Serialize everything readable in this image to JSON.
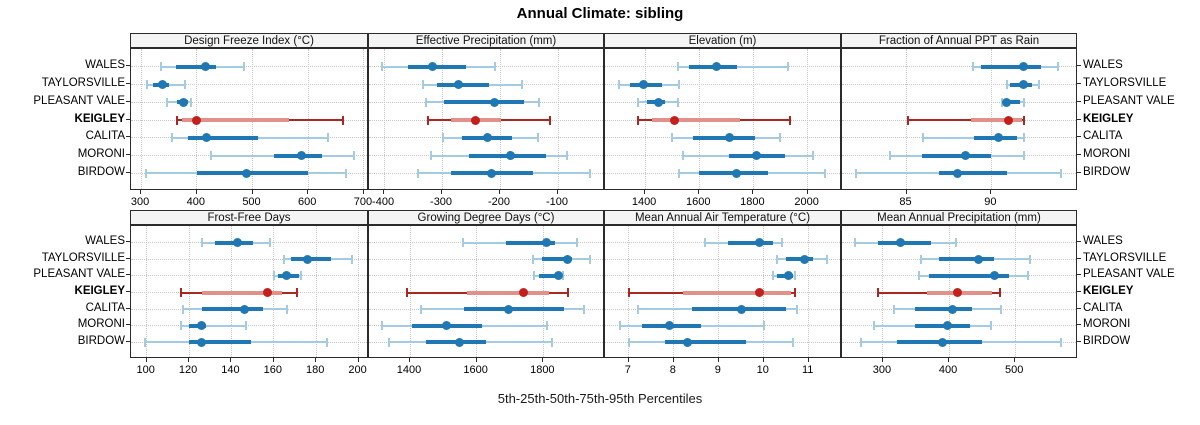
{
  "title": "Annual Climate: sibling",
  "caption": "5th-25th-50th-75th-95th Percentiles",
  "sites": [
    "WALES",
    "TAYLORSVILLE",
    "PLEASANT VALE",
    "KEIGLEY",
    "CALITA",
    "MORONI",
    "BIRDOW"
  ],
  "highlight_site": "KEIGLEY",
  "percentile_labels": [
    "5th",
    "25th",
    "50th",
    "75th",
    "95th"
  ],
  "colors": {
    "normal": {
      "line": "#a5cbe2",
      "iqr": "#1f77b4",
      "dot": "#1f77b4"
    },
    "highlight": {
      "line": "#ad2722",
      "iqr": "#e2908a",
      "dot": "#c3201b"
    },
    "grid": "#c6c6c6",
    "border": "#2b2b2b",
    "strip_bg": "#f4f4f4"
  },
  "chart_data": [
    {
      "type": "dotplot-percentile",
      "title": "Design Freeze Index (°C)",
      "ticks": [
        300,
        400,
        500,
        600,
        700
      ],
      "xlim": [
        282,
        709
      ],
      "values": [
        [
          336,
          362,
          415,
          435,
          484
        ],
        [
          311,
          321,
          338,
          351,
          378
        ],
        [
          346,
          365,
          377,
          385,
          390
        ],
        [
          365,
          374,
          400,
          565,
          663
        ],
        [
          355,
          384,
          418,
          509,
          635
        ],
        [
          426,
          538,
          588,
          624,
          682
        ],
        [
          309,
          400,
          490,
          599,
          668
        ]
      ]
    },
    {
      "type": "dotplot-percentile",
      "title": "Effective Precipitation (mm)",
      "ticks": [
        -400,
        -300,
        -200,
        -100
      ],
      "xlim": [
        -426,
        -19
      ],
      "values": [
        [
          -403,
          -358,
          -317,
          -259,
          -208
        ],
        [
          -333,
          -308,
          -272,
          -219,
          -163
        ],
        [
          -328,
          -297,
          -210,
          -159,
          -132
        ],
        [
          -325,
          -284,
          -242,
          -198,
          -114
        ],
        [
          -298,
          -265,
          -222,
          -179,
          -134
        ],
        [
          -319,
          -253,
          -182,
          -121,
          -85
        ],
        [
          -341,
          -285,
          -214,
          -144,
          -45
        ]
      ]
    },
    {
      "type": "dotplot-percentile",
      "title": "Elevation (m)",
      "ticks": [
        1400,
        1600,
        1800,
        2000
      ],
      "xlim": [
        1252,
        2127
      ],
      "values": [
        [
          1521,
          1563,
          1662,
          1738,
          1927
        ],
        [
          1302,
          1345,
          1394,
          1464,
          1525
        ],
        [
          1373,
          1406,
          1449,
          1474,
          1523
        ],
        [
          1375,
          1425,
          1507,
          1751,
          1935
        ],
        [
          1498,
          1578,
          1711,
          1806,
          1898
        ],
        [
          1541,
          1708,
          1812,
          1917,
          2021
        ],
        [
          1525,
          1599,
          1736,
          1855,
          2064
        ]
      ]
    },
    {
      "type": "dotplot-percentile",
      "title": "Fraction of Annual PPT as Rain",
      "ticks": [
        85,
        90
      ],
      "xlim": [
        81.2,
        95.1
      ],
      "values": [
        [
          88.9,
          89.4,
          91.9,
          92.9,
          93.9
        ],
        [
          90.9,
          91.1,
          91.9,
          92.4,
          92.8
        ],
        [
          90.6,
          90.7,
          90.9,
          91.7,
          91.9
        ],
        [
          85.1,
          88.8,
          91.0,
          91.8,
          91.9
        ],
        [
          86.0,
          89.0,
          90.4,
          91.5,
          91.9
        ],
        [
          84.0,
          85.9,
          88.5,
          90.0,
          91.9
        ],
        [
          82.0,
          86.9,
          88.0,
          90.9,
          94.1
        ]
      ]
    },
    {
      "type": "dotplot-percentile",
      "title": "Frost-Free Days",
      "ticks": [
        100,
        120,
        140,
        160,
        180,
        200
      ],
      "xlim": [
        92.6,
        204.9
      ],
      "values": [
        [
          126,
          132,
          143,
          150,
          158
        ],
        [
          165,
          168,
          176,
          187,
          197
        ],
        [
          160,
          162,
          166,
          172,
          173
        ],
        [
          116,
          126,
          157,
          164,
          171
        ],
        [
          117,
          126,
          146,
          155,
          166
        ],
        [
          116,
          120,
          126,
          128,
          147
        ],
        [
          99,
          120,
          126,
          149,
          185
        ]
      ]
    },
    {
      "type": "dotplot-percentile",
      "title": "Growing Degree Days (°C)",
      "ticks": [
        1400,
        1600,
        1800
      ],
      "xlim": [
        1277,
        1985
      ],
      "values": [
        [
          1560,
          1687,
          1810,
          1835,
          1902
        ],
        [
          1769,
          1797,
          1872,
          1887,
          1940
        ],
        [
          1772,
          1787,
          1845,
          1857,
          1860
        ],
        [
          1390,
          1572,
          1740,
          1817,
          1875
        ],
        [
          1432,
          1562,
          1695,
          1862,
          1922
        ],
        [
          1317,
          1405,
          1510,
          1617,
          1812
        ],
        [
          1337,
          1449,
          1547,
          1627,
          1825
        ]
      ]
    },
    {
      "type": "dotplot-percentile",
      "title": "Mean Annual Air Temperature (°C)",
      "ticks": [
        7,
        8,
        9,
        10,
        11
      ],
      "xlim": [
        6.47,
        11.74
      ],
      "values": [
        [
          8.7,
          9.2,
          9.9,
          10.2,
          10.4
        ],
        [
          10.3,
          10.5,
          10.9,
          11.1,
          11.4
        ],
        [
          10.2,
          10.3,
          10.55,
          10.65,
          10.7
        ],
        [
          7.0,
          8.2,
          9.9,
          10.6,
          10.7
        ],
        [
          7.2,
          8.4,
          9.5,
          10.5,
          10.75
        ],
        [
          6.8,
          7.3,
          7.9,
          8.6,
          10.0
        ],
        [
          7.0,
          7.8,
          8.3,
          9.6,
          10.65
        ]
      ]
    },
    {
      "type": "dotplot-percentile",
      "title": "Mean Annual Precipitation (mm)",
      "ticks": [
        300,
        400,
        500
      ],
      "xlim": [
        238,
        595
      ],
      "values": [
        [
          257,
          292,
          326,
          372,
          411
        ],
        [
          357,
          384,
          444,
          468,
          522
        ],
        [
          355,
          370,
          468,
          490,
          519
        ],
        [
          292,
          367,
          413,
          465,
          477
        ],
        [
          316,
          348,
          405,
          435,
          478
        ],
        [
          287,
          348,
          398,
          432,
          463
        ],
        [
          267,
          321,
          390,
          450,
          570
        ]
      ]
    }
  ]
}
